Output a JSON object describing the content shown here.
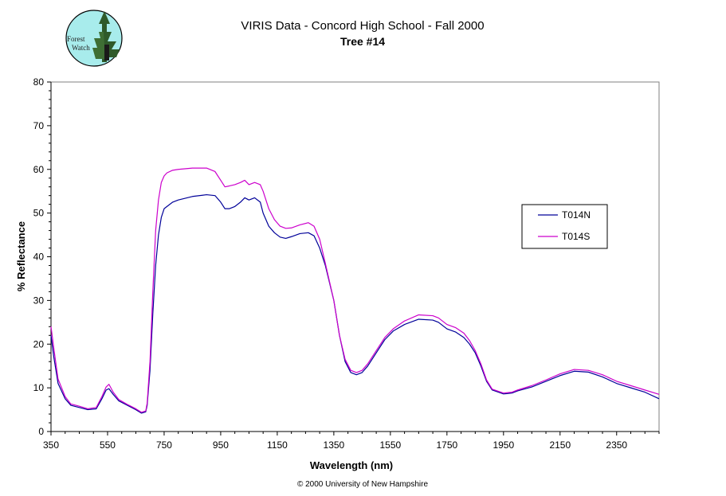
{
  "logo": {
    "line1": "Forest",
    "line2": "Watch"
  },
  "copyright": "© 2000 University of New Hampshire",
  "chart_data": {
    "type": "line",
    "title": "VIRIS Data - Concord High School - Fall 2000",
    "subtitle": "Tree #14",
    "xlabel": "Wavelength (nm)",
    "ylabel": "% Reflectance",
    "xlim": [
      350,
      2500
    ],
    "ylim": [
      0,
      80
    ],
    "xticks": [
      350,
      550,
      750,
      950,
      1150,
      1350,
      1550,
      1750,
      1950,
      2150,
      2350
    ],
    "yticks": [
      0,
      10,
      20,
      30,
      40,
      50,
      60,
      70,
      80
    ],
    "grid": false,
    "legend_position": "right",
    "series": [
      {
        "name": "T014N",
        "color": "#000099",
        "x": [
          350,
          360,
          375,
          400,
          420,
          450,
          480,
          510,
          530,
          545,
          555,
          570,
          590,
          620,
          650,
          670,
          685,
          690,
          700,
          710,
          720,
          730,
          740,
          750,
          760,
          780,
          800,
          850,
          900,
          930,
          950,
          965,
          980,
          1000,
          1020,
          1035,
          1050,
          1070,
          1090,
          1100,
          1120,
          1140,
          1160,
          1180,
          1200,
          1230,
          1260,
          1280,
          1300,
          1320,
          1350,
          1370,
          1390,
          1410,
          1430,
          1450,
          1470,
          1500,
          1530,
          1560,
          1600,
          1650,
          1700,
          1720,
          1750,
          1780,
          1810,
          1830,
          1850,
          1870,
          1890,
          1910,
          1950,
          1980,
          2000,
          2050,
          2100,
          2150,
          2200,
          2250,
          2300,
          2350,
          2400,
          2450,
          2500
        ],
        "y": [
          22,
          17,
          11,
          7.5,
          6,
          5.5,
          5,
          5.2,
          7.5,
          9.5,
          9.8,
          8.5,
          7,
          6,
          5,
          4.2,
          4.5,
          6,
          14,
          27,
          38,
          45,
          49,
          51,
          51.5,
          52.5,
          53,
          53.8,
          54.2,
          54,
          52.5,
          51,
          51,
          51.5,
          52.5,
          53.5,
          53,
          53.5,
          52.5,
          50,
          47,
          45.5,
          44.5,
          44.2,
          44.6,
          45.3,
          45.5,
          44.8,
          42,
          38,
          30,
          22,
          16,
          13.5,
          13,
          13.5,
          15,
          18,
          21,
          23,
          24.5,
          25.7,
          25.5,
          25,
          23.5,
          22.8,
          21.5,
          20,
          18,
          15,
          11.5,
          9.5,
          8.6,
          8.8,
          9.3,
          10.2,
          11.5,
          12.8,
          13.8,
          13.6,
          12.5,
          11,
          10,
          9,
          7.5
        ]
      },
      {
        "name": "T014S",
        "color": "#CC00CC",
        "x": [
          350,
          360,
          375,
          400,
          420,
          450,
          480,
          510,
          530,
          545,
          555,
          570,
          590,
          620,
          650,
          670,
          685,
          690,
          700,
          710,
          720,
          730,
          740,
          750,
          760,
          780,
          800,
          850,
          900,
          930,
          950,
          965,
          980,
          1000,
          1020,
          1035,
          1050,
          1070,
          1090,
          1100,
          1120,
          1140,
          1160,
          1180,
          1200,
          1230,
          1260,
          1280,
          1300,
          1320,
          1350,
          1370,
          1390,
          1410,
          1430,
          1450,
          1470,
          1500,
          1530,
          1560,
          1600,
          1650,
          1700,
          1720,
          1750,
          1780,
          1810,
          1830,
          1850,
          1870,
          1890,
          1910,
          1950,
          1980,
          2000,
          2050,
          2100,
          2150,
          2200,
          2250,
          2300,
          2350,
          2400,
          2450,
          2500
        ],
        "y": [
          24,
          19,
          12,
          8,
          6.3,
          5.8,
          5.2,
          5.5,
          8,
          10.2,
          10.8,
          9,
          7.3,
          6.2,
          5.2,
          4.4,
          4.7,
          6.5,
          16,
          32,
          46,
          53,
          57,
          58.5,
          59.2,
          59.8,
          60,
          60.3,
          60.3,
          59.5,
          57.5,
          56,
          56.2,
          56.5,
          57,
          57.5,
          56.5,
          57,
          56.5,
          55,
          51,
          48.5,
          47,
          46.5,
          46.6,
          47.3,
          47.8,
          47,
          44,
          38.5,
          30,
          22,
          16.5,
          14,
          13.5,
          14,
          15.5,
          18.5,
          21.5,
          23.5,
          25.3,
          26.7,
          26.5,
          26,
          24.5,
          23.8,
          22.5,
          20.8,
          18.5,
          15.5,
          11.8,
          9.7,
          8.8,
          9,
          9.5,
          10.5,
          11.8,
          13.2,
          14.2,
          14,
          13,
          11.5,
          10.5,
          9.5,
          8.5
        ]
      }
    ]
  }
}
